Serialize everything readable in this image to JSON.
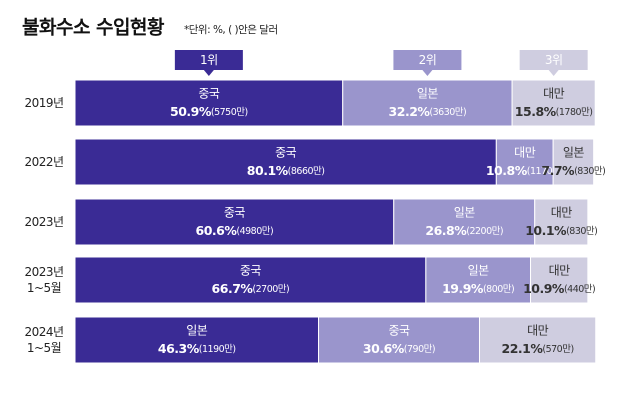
{
  "chart_data": {
    "type": "stacked-bar-horizontal",
    "title": "불화수소 수입현황",
    "subtitle": "*단위: %, ( )안은 달러",
    "categories": [
      "2019년",
      "2022년",
      "2023년",
      "2023년 1~5월",
      "2024년 1~5월"
    ],
    "xlim": [
      0,
      100
    ],
    "series": [
      {
        "name": "1위",
        "color": "#3a2b95",
        "segment_labels": [
          "중국",
          "중국",
          "중국",
          "중국",
          "일본"
        ],
        "values": [
          50.9,
          80.1,
          60.6,
          66.7,
          46.3
        ],
        "value_labels": [
          "50.9%",
          "80.1%",
          "60.6%",
          "66.7%",
          "46.3%"
        ],
        "amount_labels": [
          "(5750만)",
          "(8660만)",
          "(4980만)",
          "(2700만)",
          "(1190만)"
        ]
      },
      {
        "name": "2위",
        "color": "#9a95cc",
        "segment_labels": [
          "일본",
          "대만",
          "일본",
          "일본",
          "중국"
        ],
        "values": [
          32.2,
          10.8,
          26.8,
          19.9,
          30.6
        ],
        "value_labels": [
          "32.2%",
          "10.8%",
          "26.8%",
          "19.9%",
          "30.6%"
        ],
        "amount_labels": [
          "(3630만)",
          "(1170만)",
          "(2200만)",
          "(800만)",
          "(790만)"
        ]
      },
      {
        "name": "3위",
        "color": "#cfcde0",
        "segment_labels": [
          "대만",
          "일본",
          "대만",
          "대만",
          "대만"
        ],
        "values": [
          15.8,
          7.7,
          10.1,
          10.9,
          22.1
        ],
        "value_labels": [
          "15.8%",
          "7.7%",
          "10.1%",
          "10.9%",
          "22.1%"
        ],
        "amount_labels": [
          "(1780만)",
          "(830만)",
          "(830만)",
          "(440만)",
          "(570만)"
        ]
      }
    ]
  }
}
